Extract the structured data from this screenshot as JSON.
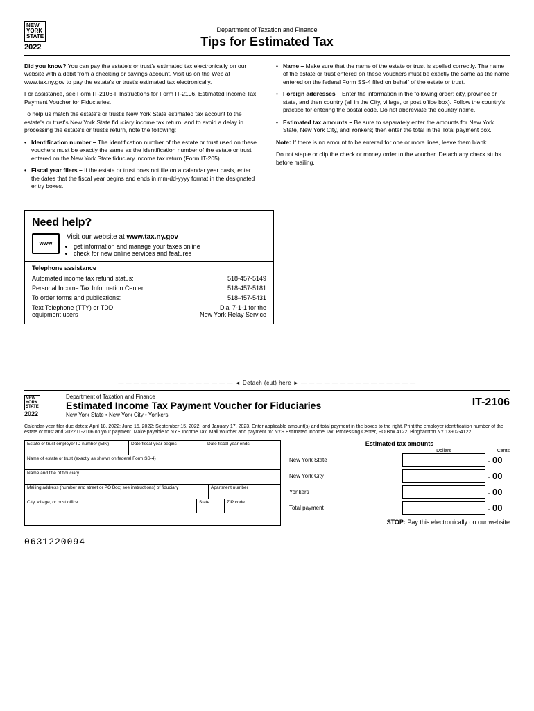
{
  "header": {
    "state_logo": "NEW\nYORK\nSTATE",
    "year": "2022",
    "dept": "Department of Taxation and Finance",
    "title": "Tips for Estimated Tax"
  },
  "left_col": {
    "p1_lead": "Did you know?",
    "p1": " You can pay the estate's or trust's estimated tax electronically on our website with a debit from a checking or savings account. Visit us on the Web at www.tax.ny.gov to pay the estate's or trust's estimated tax electronically.",
    "p2": "For assistance, see Form IT-2106-I, Instructions for Form IT-2106, Estimated Income Tax Payment Voucher for Fiduciaries.",
    "p3": "To help us match the estate's or trust's New York State estimated tax account to the estate's or trust's New York State fiduciary income tax return, and to avoid a delay in processing the estate's or trust's return, note the following:",
    "bullets": [
      {
        "lead": "Identification number – ",
        "text": "The identification number of the estate or trust used on these vouchers must be exactly the same as the identification number of the estate or trust entered on the New York State fiduciary income tax return (Form IT-205)."
      },
      {
        "lead": "Fiscal year filers – ",
        "text": "If the estate or trust does not file on a calendar year basis, enter the dates that the fiscal year begins and ends in mm-dd-yyyy format in the designated entry boxes."
      }
    ]
  },
  "right_col": {
    "bullets": [
      {
        "lead": "Name – ",
        "text": "Make sure that the name of the estate or trust is spelled correctly. The name of the estate or trust entered on these vouchers must be exactly the same as the name entered on the federal Form SS-4 filed on behalf of the estate or trust."
      },
      {
        "lead": "Foreign addresses – ",
        "text": "Enter the information in the following order: city, province or state, and then country (all in the City, village, or post office box). Follow the country's practice for entering the postal code. Do not abbreviate the country name."
      },
      {
        "lead": "Estimated tax amounts – ",
        "text": "Be sure to separately enter the amounts for New York State, New York City, and Yonkers; then enter the total in the Total payment box."
      }
    ],
    "note_lead": "Note:",
    "note": " If there is no amount to be entered for one or more lines, leave them blank.",
    "p_last": "Do not staple or clip the check or money order to the voucher. Detach any check stubs before mailing."
  },
  "need_help": {
    "title": "Need help?",
    "www": "www",
    "visit": "Visit our website at ",
    "url": "www.tax.ny.gov",
    "items": [
      "get information and manage your taxes online",
      "check for new online services and features"
    ],
    "tel_title": "Telephone assistance",
    "rows": [
      {
        "l": "Automated income tax refund status:",
        "r": "518-457-5149"
      },
      {
        "l": "Personal Income Tax Information Center:",
        "r": "518-457-5181"
      },
      {
        "l": "To order forms and publications:",
        "r": "518-457-5431"
      },
      {
        "l": "Text Telephone (TTY) or TDD\n    equipment users",
        "r": "Dial 7-1-1 for the\nNew York Relay Service"
      }
    ]
  },
  "detach": "◄  Detach (cut) here  ►",
  "voucher": {
    "year": "2022",
    "dept": "Department of Taxation and Finance",
    "title": "Estimated Income Tax Payment Voucher for Fiduciaries",
    "sub": "New York State • New York City • Yonkers",
    "form_no": "IT-2106",
    "instr": "Calendar-year filer due dates: April 18, 2022; June 15, 2022; September 15, 2022; and January 17, 2023. Enter applicable amount(s) and total payment in the boxes to the right. Print the employer identification number of the estate or trust and 2022 IT-2106 on your payment. Make payable to NYS Income Tax. Mail voucher and payment to: NYS Estimated Income Tax, Processing Center, PO Box 4122, Binghamton NY 13902-4122.",
    "fields": {
      "ein": "Estate or trust employer ID number (EIN)",
      "fyb": "Date fiscal year begins",
      "fye": "Date fiscal year ends",
      "name": "Name of estate or trust (exactly as shown on federal Form SS-4)",
      "fiduciary": "Name and title of fiduciary",
      "mail": "Mailing address (number and street or PO Box; see instructions) of fiduciary",
      "apt": "Apartment number",
      "city": "City, village, or post office",
      "state": "State",
      "zip": "ZIP code"
    },
    "amounts": {
      "title": "Estimated tax amounts",
      "dollars": "Dollars",
      "cents": "Cents",
      "rows": [
        "New York State",
        "New York City",
        "Yonkers",
        "Total payment"
      ],
      "cents_val": "00"
    },
    "stop_lead": "STOP:",
    "stop": " Pay this electronically on our website"
  },
  "barcode": "0631220094"
}
